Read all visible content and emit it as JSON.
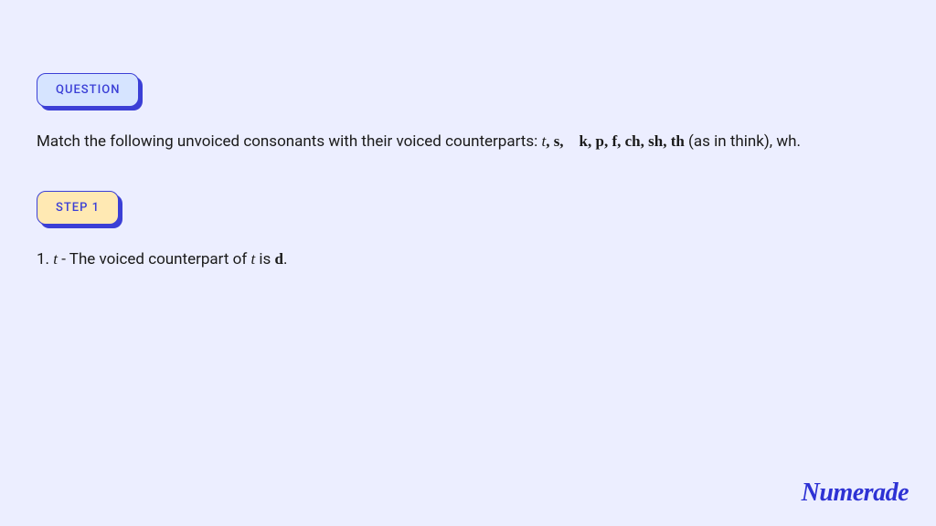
{
  "colors": {
    "page_background": "#eceeff",
    "badge_border": "#3b3fd6",
    "badge_shadow": "#3b3fd6",
    "badge_question_bg": "#d6e4ff",
    "badge_step_bg": "#ffe9b3",
    "badge_text": "#3b3fd6",
    "body_text": "#1a1a1a",
    "logo_color": "#2e32d4"
  },
  "typography": {
    "body_fontsize": 17,
    "badge_fontsize": 13,
    "logo_fontsize": 28
  },
  "question": {
    "badge_label": "QUESTION",
    "text_prefix": "Match the following unvoiced consonants with their voiced counterparts: ",
    "consonants_italic_t": "t",
    "consonants_list": ", s, k, p, f, ch, sh, th",
    "text_suffix": " (as in think), wh."
  },
  "step": {
    "badge_label": "STEP 1",
    "text_prefix": "1. ",
    "t1": "t",
    "mid": " - The voiced counterpart of ",
    "t2": "t",
    "is_text": " is ",
    "d": "d",
    "period": "."
  },
  "logo": {
    "text": "Numerade"
  }
}
